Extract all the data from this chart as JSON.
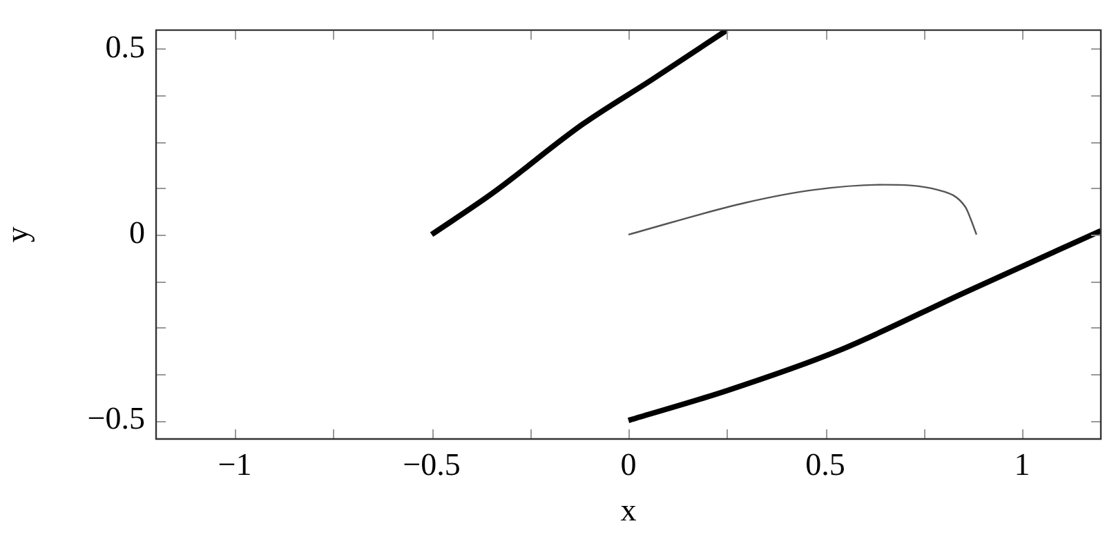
{
  "chart_data": {
    "type": "line",
    "xlabel": "x",
    "ylabel": "y",
    "xlim": [
      -1.2,
      1.2
    ],
    "ylim": [
      -0.55,
      0.55
    ],
    "xticks": [
      {
        "value": -1,
        "label": "−1"
      },
      {
        "value": -0.75,
        "label": null
      },
      {
        "value": -0.5,
        "label": "−0.5"
      },
      {
        "value": -0.25,
        "label": null
      },
      0,
      {
        "value": 0.25,
        "label": null
      },
      0.5,
      {
        "value": 0.75,
        "label": null
      },
      1
    ],
    "yticks": [
      {
        "value": -0.5,
        "label": "−0.5"
      },
      {
        "value": -0.375,
        "label": null
      },
      {
        "value": -0.25,
        "label": null
      },
      {
        "value": -0.125,
        "label": null
      },
      0,
      {
        "value": 0.125,
        "label": null
      },
      {
        "value": 0.25,
        "label": null
      },
      {
        "value": 0.375,
        "label": null
      },
      0.5
    ],
    "grid": false,
    "legend": false,
    "marker": "none",
    "line_style": "solid",
    "series": [
      {
        "color": "#000000",
        "x": [
          -0.5,
          -0.347,
          -0.116,
          0.06,
          0.25
        ],
        "values": [
          0,
          0.11,
          0.297,
          0.417,
          0.55
        ]
      },
      {
        "color": "#555555",
        "x": [
          0,
          0.295,
          0.47,
          0.646,
          0.786,
          0.856,
          0.87,
          0.884
        ],
        "values": [
          0,
          0.085,
          0.12,
          0.134,
          0.12,
          0.074,
          0.04,
          0
        ]
      },
      {
        "color": "#000000",
        "x": [
          0,
          0.25,
          0.53,
          0.856,
          1.2
        ],
        "values": [
          -0.5,
          -0.42,
          -0.314,
          -0.155,
          0.01
        ]
      }
    ]
  }
}
